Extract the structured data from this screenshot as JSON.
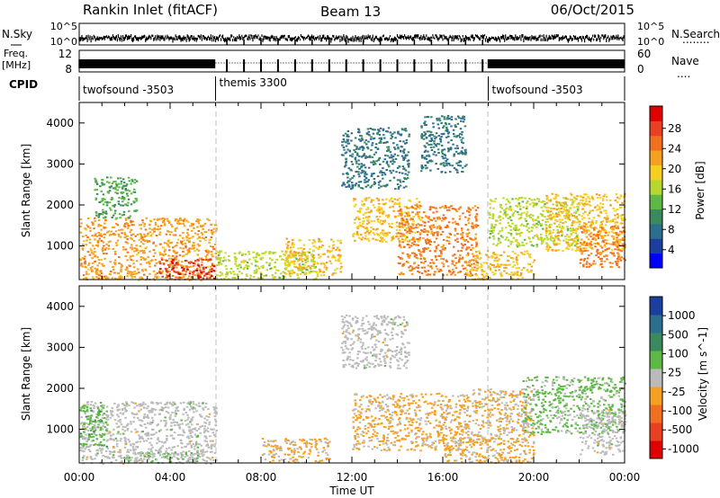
{
  "header": {
    "title": "Rankin Inlet (fitACF)",
    "beam": "Beam 13",
    "date": "06/Oct/2015"
  },
  "noise_panel": {
    "left_label": "N.Sky",
    "right_label": "N.Search",
    "left_ticks": [
      "10^5",
      "10^0"
    ],
    "right_ticks": [
      "10^5",
      "10^0"
    ],
    "nsearch_dots": "........"
  },
  "freq_panel": {
    "left_label": "Freq.",
    "left_unit": "[MHz]",
    "right_label": "Nave",
    "left_ticks": [
      "12",
      "8"
    ],
    "right_ticks": [
      "60",
      "0"
    ],
    "nave_dots": "...."
  },
  "cpid": {
    "label": "CPID",
    "segments": [
      {
        "name": "twofsound -3503",
        "start_h": 0,
        "end_h": 6
      },
      {
        "name": "themis 3300",
        "start_h": 6,
        "end_h": 18
      },
      {
        "name": "twofsound -3503",
        "start_h": 18,
        "end_h": 24
      }
    ]
  },
  "time_axis": {
    "label": "Time UT",
    "tick_labels": [
      "00:00",
      "04:00",
      "08:00",
      "12:00",
      "16:00",
      "20:00",
      "00:00"
    ],
    "range_h": [
      0,
      24
    ]
  },
  "chart_data": [
    {
      "type": "heatmap",
      "quantity": "Power",
      "colorbar_label": "Power [dB]",
      "colorbar_ticks": [
        "28",
        "24",
        "20",
        "16",
        "12",
        "8",
        "4"
      ],
      "colorbar_range": [
        0,
        32
      ],
      "colors_low_to_high": [
        "#0000ff",
        "#1a3f9e",
        "#2d6e8e",
        "#3a8a5e",
        "#5db845",
        "#b8d830",
        "#f5d020",
        "#f5a020",
        "#f07020",
        "#e84020",
        "#e00000"
      ],
      "ylabel": "Slant Range [km]",
      "yticks": [
        "4000",
        "3000",
        "2000",
        "1000"
      ],
      "ylim": [
        180,
        4500
      ],
      "xlabel": "Time UT",
      "xlim": [
        0,
        24
      ],
      "regions": [
        {
          "t": [
            0.0,
            6.0
          ],
          "r": [
            180,
            1700
          ],
          "value": 22
        },
        {
          "t": [
            0.6,
            2.5
          ],
          "r": [
            1700,
            2700
          ],
          "value": 12
        },
        {
          "t": [
            3.5,
            5.9
          ],
          "r": [
            200,
            700
          ],
          "value": 28
        },
        {
          "t": [
            6.0,
            10.5
          ],
          "r": [
            200,
            900
          ],
          "value": 16
        },
        {
          "t": [
            9.0,
            11.5
          ],
          "r": [
            300,
            1200
          ],
          "value": 20
        },
        {
          "t": [
            11.5,
            14.5
          ],
          "r": [
            2400,
            3900
          ],
          "value": 8
        },
        {
          "t": [
            12.0,
            15.0
          ],
          "r": [
            1100,
            2200
          ],
          "value": 20
        },
        {
          "t": [
            14.0,
            17.5
          ],
          "r": [
            300,
            2000
          ],
          "value": 24
        },
        {
          "t": [
            15.0,
            17.0
          ],
          "r": [
            2800,
            4200
          ],
          "value": 8
        },
        {
          "t": [
            17.0,
            20.0
          ],
          "r": [
            200,
            900
          ],
          "value": 20
        },
        {
          "t": [
            18.0,
            22.0
          ],
          "r": [
            1000,
            2200
          ],
          "value": 16
        },
        {
          "t": [
            20.5,
            24.0
          ],
          "r": [
            900,
            2300
          ],
          "value": 20
        },
        {
          "t": [
            22.0,
            24.0
          ],
          "r": [
            500,
            1500
          ],
          "value": 24
        }
      ]
    },
    {
      "type": "heatmap",
      "quantity": "Velocity",
      "colorbar_label": "Velocity [m s^-1]",
      "colorbar_ticks": [
        "1000",
        "500",
        "100",
        "25",
        "-25",
        "-100",
        "-500",
        "-1000"
      ],
      "colorbar_range": [
        -1250,
        1250
      ],
      "colors_low_to_high": [
        "#e00000",
        "#e84020",
        "#f07020",
        "#f5a020",
        "#bbbbbb",
        "#5db845",
        "#3a8a5e",
        "#2d6e8e",
        "#1a3f9e"
      ],
      "ylabel": "Slant Range [km]",
      "yticks": [
        "4000",
        "3000",
        "2000",
        "1000"
      ],
      "ylim": [
        180,
        4500
      ],
      "xlabel": "Time UT",
      "xlim": [
        0,
        24
      ],
      "regions": [
        {
          "t": [
            0.0,
            6.0
          ],
          "r": [
            180,
            1700
          ],
          "value": 0
        },
        {
          "t": [
            0.0,
            1.2
          ],
          "r": [
            600,
            1600
          ],
          "value": 300
        },
        {
          "t": [
            2.0,
            5.5
          ],
          "r": [
            200,
            500
          ],
          "value": 100
        },
        {
          "t": [
            8.0,
            11.0
          ],
          "r": [
            200,
            800
          ],
          "value": -200
        },
        {
          "t": [
            11.5,
            14.5
          ],
          "r": [
            2500,
            3800
          ],
          "value": 0
        },
        {
          "t": [
            12.0,
            17.0
          ],
          "r": [
            500,
            1900
          ],
          "value": -200
        },
        {
          "t": [
            16.0,
            20.0
          ],
          "r": [
            200,
            800
          ],
          "value": -200
        },
        {
          "t": [
            17.0,
            20.0
          ],
          "r": [
            700,
            2000
          ],
          "value": -150
        },
        {
          "t": [
            19.5,
            24.0
          ],
          "r": [
            900,
            2300
          ],
          "value": 200
        },
        {
          "t": [
            22.0,
            24.0
          ],
          "r": [
            400,
            1500
          ],
          "value": 0
        }
      ]
    }
  ]
}
